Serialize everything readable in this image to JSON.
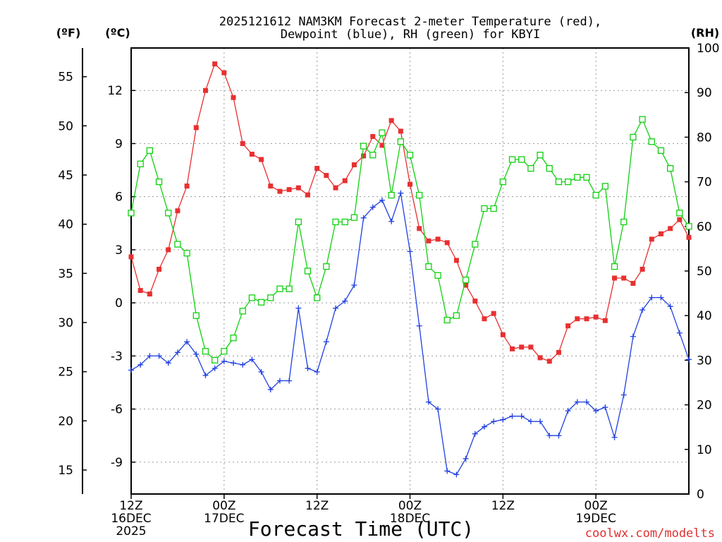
{
  "chart_data": {
    "type": "line",
    "title_line1": "2025121612 NAM3KM Forecast 2-meter Temperature (red),",
    "title_line2": "Dewpoint (blue), RH (green) for KBYI",
    "xlabel": "Forecast Time (UTC)",
    "credit": "coolwx.com/modelts",
    "left_unit_f": "(ºF)",
    "left_unit_c": "(ºC)",
    "right_unit": "(RH)",
    "x_range_hours": [
      0,
      72
    ],
    "x_ticks": [
      {
        "hour": 0,
        "line1": "12Z",
        "line2": "16DEC",
        "line3": "2025"
      },
      {
        "hour": 12,
        "line1": "00Z",
        "line2": "17DEC",
        "line3": ""
      },
      {
        "hour": 24,
        "line1": "12Z",
        "line2": "",
        "line3": ""
      },
      {
        "hour": 36,
        "line1": "00Z",
        "line2": "18DEC",
        "line3": ""
      },
      {
        "hour": 48,
        "line1": "12Z",
        "line2": "",
        "line3": ""
      },
      {
        "hour": 60,
        "line1": "00Z",
        "line2": "19DEC",
        "line3": ""
      }
    ],
    "c_range": [
      -10.8,
      14.4
    ],
    "c_ticks": [
      "-9",
      "-6",
      "-3",
      "0",
      "3",
      "6",
      "9",
      "12"
    ],
    "f_ticks": [
      "15",
      "20",
      "25",
      "30",
      "35",
      "40",
      "45",
      "50",
      "55"
    ],
    "rh_range": [
      0,
      100
    ],
    "rh_ticks": [
      "0",
      "10",
      "20",
      "30",
      "40",
      "50",
      "60",
      "70",
      "80",
      "90",
      "100"
    ],
    "colors": {
      "temperature": "#e83030",
      "dewpoint": "#2040e0",
      "rh": "#10d010"
    },
    "series": [
      {
        "key": "temperature",
        "unit": "C",
        "values": [
          2.6,
          0.7,
          0.5,
          1.9,
          3.0,
          5.2,
          6.6,
          9.9,
          12.0,
          13.5,
          13.0,
          11.6,
          9.0,
          8.4,
          8.1,
          6.6,
          6.3,
          6.4,
          6.5,
          6.1,
          7.6,
          7.2,
          6.5,
          6.9,
          7.8,
          8.3,
          9.4,
          8.9,
          10.3,
          9.7,
          6.7,
          4.2,
          3.5,
          3.6,
          3.4,
          2.4,
          1.0,
          0.1,
          -0.9,
          -0.6,
          -1.8,
          -2.6,
          -2.5,
          -2.5,
          -3.1,
          -3.3,
          -2.8,
          -1.3,
          -0.9,
          -0.9,
          -0.8,
          -1.0,
          1.4,
          1.4,
          1.1,
          1.9,
          3.6,
          3.9,
          4.2,
          4.7,
          3.7
        ]
      },
      {
        "key": "dewpoint",
        "unit": "C",
        "values": [
          -3.8,
          -3.5,
          -3.0,
          -3.0,
          -3.4,
          -2.8,
          -2.2,
          -2.9,
          -4.1,
          -3.7,
          -3.3,
          -3.4,
          -3.5,
          -3.2,
          -3.9,
          -4.9,
          -4.4,
          -4.4,
          -0.3,
          -3.7,
          -3.9,
          -2.2,
          -0.3,
          0.1,
          1.0,
          4.8,
          5.4,
          5.8,
          4.6,
          6.2,
          2.9,
          -1.3,
          -5.6,
          -6.0,
          -9.5,
          -9.7,
          -8.8,
          -7.4,
          -7.0,
          -6.7,
          -6.6,
          -6.4,
          -6.4,
          -6.7,
          -6.7,
          -7.5,
          -7.5,
          -6.1,
          -5.6,
          -5.6,
          -6.1,
          -5.9,
          -7.6,
          -5.2,
          -1.9,
          -0.4,
          0.3,
          0.3,
          -0.2,
          -1.7,
          -3.2
        ]
      },
      {
        "key": "rh",
        "unit": "%",
        "values": [
          63,
          74,
          77,
          70,
          63,
          56,
          54,
          40,
          32,
          30,
          32,
          35,
          41,
          44,
          43,
          44,
          46,
          46,
          61,
          50,
          44,
          51,
          61,
          61,
          62,
          78,
          76,
          81,
          67,
          79,
          76,
          67,
          51,
          49,
          39,
          40,
          48,
          56,
          64,
          64,
          70,
          75,
          75,
          73,
          76,
          73,
          70,
          70,
          71,
          71,
          67,
          69,
          51,
          61,
          80,
          84,
          79,
          77,
          73,
          63,
          60
        ]
      }
    ]
  }
}
